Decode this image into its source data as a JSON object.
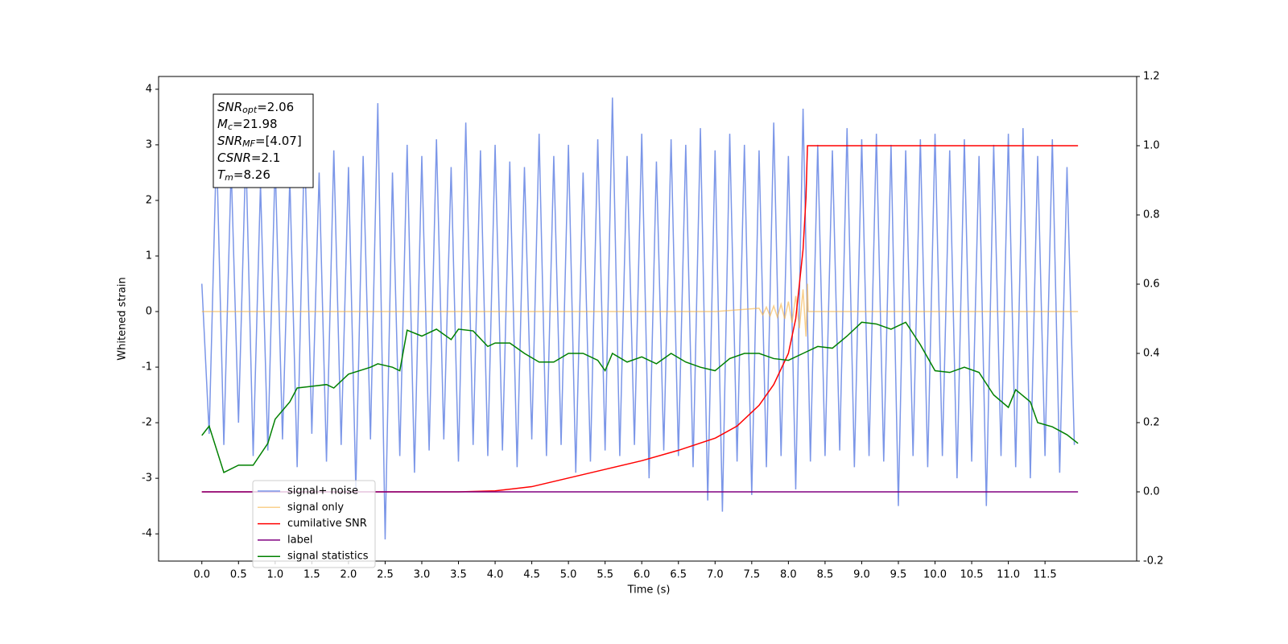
{
  "chart_data": {
    "type": "line",
    "xlabel": "Time (s)",
    "ylabel": "Whitened strain",
    "xlim": [
      -0.59,
      12.75
    ],
    "ylim": [
      -4.49,
      4.23
    ],
    "y2lim": [
      -0.2,
      1.2
    ],
    "xticks": [
      {
        "value": 0,
        "label": "0.0"
      },
      0.5,
      {
        "value": 1,
        "label": "1.0"
      },
      1.5,
      {
        "value": 2,
        "label": "2.0"
      },
      2.5,
      {
        "value": 3,
        "label": "3.0"
      },
      3.5,
      {
        "value": 4,
        "label": "4.0"
      },
      4.5,
      {
        "value": 5,
        "label": "5.0"
      },
      5.5,
      {
        "value": 6,
        "label": "6.0"
      },
      6.5,
      {
        "value": 7,
        "label": "7.0"
      },
      7.5,
      {
        "value": 8,
        "label": "8.0"
      },
      8.5,
      {
        "value": 9,
        "label": "9.0"
      },
      9.5,
      {
        "value": 10,
        "label": "10.0"
      },
      10.5,
      {
        "value": 11,
        "label": "11.0"
      },
      11.5
    ],
    "yticks": [
      -4,
      -3,
      -2,
      -1,
      0,
      1,
      2,
      3,
      4
    ],
    "y2ticks": [
      -0.2,
      {
        "value": 0,
        "label": "0.0"
      },
      0.2,
      0.4,
      0.6,
      0.8,
      {
        "value": 1,
        "label": "1.0"
      },
      1.2
    ],
    "legend": "lower left",
    "annotations": [
      {
        "symbol": "SNR",
        "subscript": "opt",
        "text": "=2.06"
      },
      {
        "symbol": "M",
        "subscript": "c",
        "text": "=21.98"
      },
      {
        "symbol": "SNR",
        "subscript": "MF",
        "text": "=[4.07]"
      },
      {
        "symbol": "CSNR",
        "text": "=2.1"
      },
      {
        "symbol": "T",
        "subscript": "m",
        "text": "=8.26"
      }
    ],
    "series": [
      {
        "name": "signal+ noise",
        "color": "#7b96e8",
        "x": [
          0,
          0.1,
          0.2,
          0.3,
          0.4,
          0.5,
          0.6,
          0.7,
          0.8,
          0.9,
          1,
          1.1,
          1.2,
          1.3,
          1.4,
          1.5,
          1.6,
          1.7,
          1.8,
          1.9,
          2,
          2.1,
          2.2,
          2.3,
          2.4,
          2.5,
          2.6,
          2.7,
          2.8,
          2.9,
          3,
          3.1,
          3.2,
          3.3,
          3.4,
          3.5,
          3.6,
          3.7,
          3.8,
          3.9,
          4,
          4.1,
          4.2,
          4.3,
          4.4,
          4.5,
          4.6,
          4.7,
          4.8,
          4.9,
          5,
          5.1,
          5.2,
          5.3,
          5.4,
          5.5,
          5.6,
          5.7,
          5.8,
          5.9,
          6,
          6.1,
          6.2,
          6.3,
          6.4,
          6.5,
          6.6,
          6.7,
          6.8,
          6.9,
          7,
          7.1,
          7.2,
          7.3,
          7.4,
          7.5,
          7.6,
          7.7,
          7.8,
          7.9,
          8,
          8.1,
          8.2,
          8.3,
          8.4,
          8.5,
          8.6,
          8.7,
          8.8,
          8.9,
          9,
          9.1,
          9.2,
          9.3,
          9.4,
          9.5,
          9.6,
          9.7,
          9.8,
          9.9,
          10,
          10.1,
          10.2,
          10.3,
          10.4,
          10.5,
          10.6,
          10.7,
          10.8,
          10.9,
          11,
          11.1,
          11.2,
          11.3,
          11.4,
          11.5,
          11.6,
          11.7,
          11.8,
          11.9
        ],
        "values": [
          0.5,
          -2.2,
          3.0,
          -2.4,
          2.6,
          -2.0,
          2.9,
          -2.6,
          2.3,
          -2.5,
          2.7,
          -2.3,
          2.4,
          -2.8,
          3.1,
          -2.2,
          2.5,
          -2.7,
          2.9,
          -2.4,
          2.6,
          -3.2,
          2.8,
          -2.3,
          3.75,
          -4.1,
          2.5,
          -2.6,
          3.0,
          -2.9,
          2.8,
          -2.5,
          3.1,
          -2.3,
          2.6,
          -2.7,
          3.4,
          -2.4,
          2.9,
          -2.6,
          3.0,
          -2.5,
          2.7,
          -2.8,
          2.6,
          -2.3,
          3.2,
          -2.6,
          2.8,
          -2.4,
          3.0,
          -2.9,
          2.5,
          -2.7,
          3.1,
          -2.5,
          3.85,
          -2.6,
          2.8,
          -2.4,
          3.2,
          -3.0,
          2.7,
          -2.5,
          3.1,
          -2.6,
          3.0,
          -2.8,
          3.3,
          -3.4,
          2.9,
          -3.6,
          3.2,
          -2.7,
          3.0,
          -3.3,
          2.9,
          -2.8,
          3.4,
          -2.6,
          2.8,
          -3.2,
          3.65,
          -2.7,
          3.0,
          -2.6,
          2.9,
          -2.5,
          3.3,
          -2.8,
          3.1,
          -2.6,
          3.2,
          -2.7,
          3.0,
          -3.5,
          2.9,
          -2.6,
          3.1,
          -2.8,
          3.2,
          -2.6,
          2.9,
          -3.0,
          3.1,
          -2.7,
          2.8,
          -3.5,
          3.0,
          -2.6,
          3.2,
          -2.8,
          3.3,
          -3.0,
          2.8,
          -2.6,
          3.1,
          -2.9,
          2.6,
          -2.4
        ]
      },
      {
        "name": "signal only",
        "color": "#f5b041",
        "x": [
          0,
          7,
          7.6,
          7.65,
          7.7,
          7.75,
          7.8,
          7.85,
          7.9,
          7.95,
          8,
          8.05,
          8.1,
          8.15,
          8.2,
          8.24,
          8.26,
          8.27,
          11.95
        ],
        "values": [
          0,
          0,
          0.06,
          -0.06,
          0.08,
          -0.08,
          0.1,
          -0.1,
          0.13,
          -0.13,
          0.18,
          -0.2,
          0.28,
          -0.3,
          0.4,
          -0.45,
          0.5,
          0,
          0
        ]
      },
      {
        "name": "cumilative SNR",
        "color": "#ff0000",
        "axis": "y2",
        "x": [
          0,
          3.5,
          4,
          4.5,
          5,
          5.5,
          6,
          6.5,
          7,
          7.3,
          7.6,
          7.8,
          8,
          8.1,
          8.2,
          8.24,
          8.26,
          11.95
        ],
        "values": [
          0,
          0,
          0.003,
          0.015,
          0.04,
          0.065,
          0.09,
          0.12,
          0.155,
          0.19,
          0.25,
          0.31,
          0.4,
          0.5,
          0.7,
          0.85,
          1,
          1
        ]
      },
      {
        "name": "label",
        "color": "#800080",
        "axis": "y2",
        "x": [
          0,
          11.95
        ],
        "values": [
          0,
          0
        ]
      },
      {
        "name": "signal statistics",
        "color": "#008000",
        "axis": "y2",
        "x": [
          0,
          0.1,
          0.3,
          0.5,
          0.7,
          0.9,
          1,
          1.2,
          1.3,
          1.5,
          1.7,
          1.8,
          2,
          2.3,
          2.4,
          2.6,
          2.7,
          2.8,
          3,
          3.2,
          3.4,
          3.5,
          3.7,
          3.9,
          4,
          4.2,
          4.4,
          4.6,
          4.8,
          5,
          5.2,
          5.4,
          5.5,
          5.6,
          5.8,
          6,
          6.2,
          6.4,
          6.6,
          6.8,
          7,
          7.2,
          7.4,
          7.6,
          7.8,
          8,
          8.2,
          8.4,
          8.6,
          8.8,
          9,
          9.2,
          9.4,
          9.6,
          9.8,
          10,
          10.2,
          10.4,
          10.6,
          10.8,
          11,
          11.1,
          11.3,
          11.4,
          11.6,
          11.8,
          11.95
        ],
        "values": [
          0.163,
          0.19,
          0.056,
          0.077,
          0.077,
          0.14,
          0.21,
          0.26,
          0.3,
          0.305,
          0.31,
          0.3,
          0.34,
          0.36,
          0.37,
          0.36,
          0.35,
          0.467,
          0.45,
          0.47,
          0.44,
          0.47,
          0.465,
          0.42,
          0.43,
          0.43,
          0.4,
          0.375,
          0.375,
          0.4,
          0.4,
          0.38,
          0.35,
          0.4,
          0.375,
          0.39,
          0.37,
          0.4,
          0.375,
          0.36,
          0.35,
          0.385,
          0.4,
          0.4,
          0.385,
          0.38,
          0.4,
          0.42,
          0.415,
          0.45,
          0.49,
          0.485,
          0.47,
          0.49,
          0.425,
          0.35,
          0.345,
          0.36,
          0.345,
          0.28,
          0.244,
          0.295,
          0.26,
          0.2,
          0.188,
          0.165,
          0.14
        ]
      }
    ]
  }
}
